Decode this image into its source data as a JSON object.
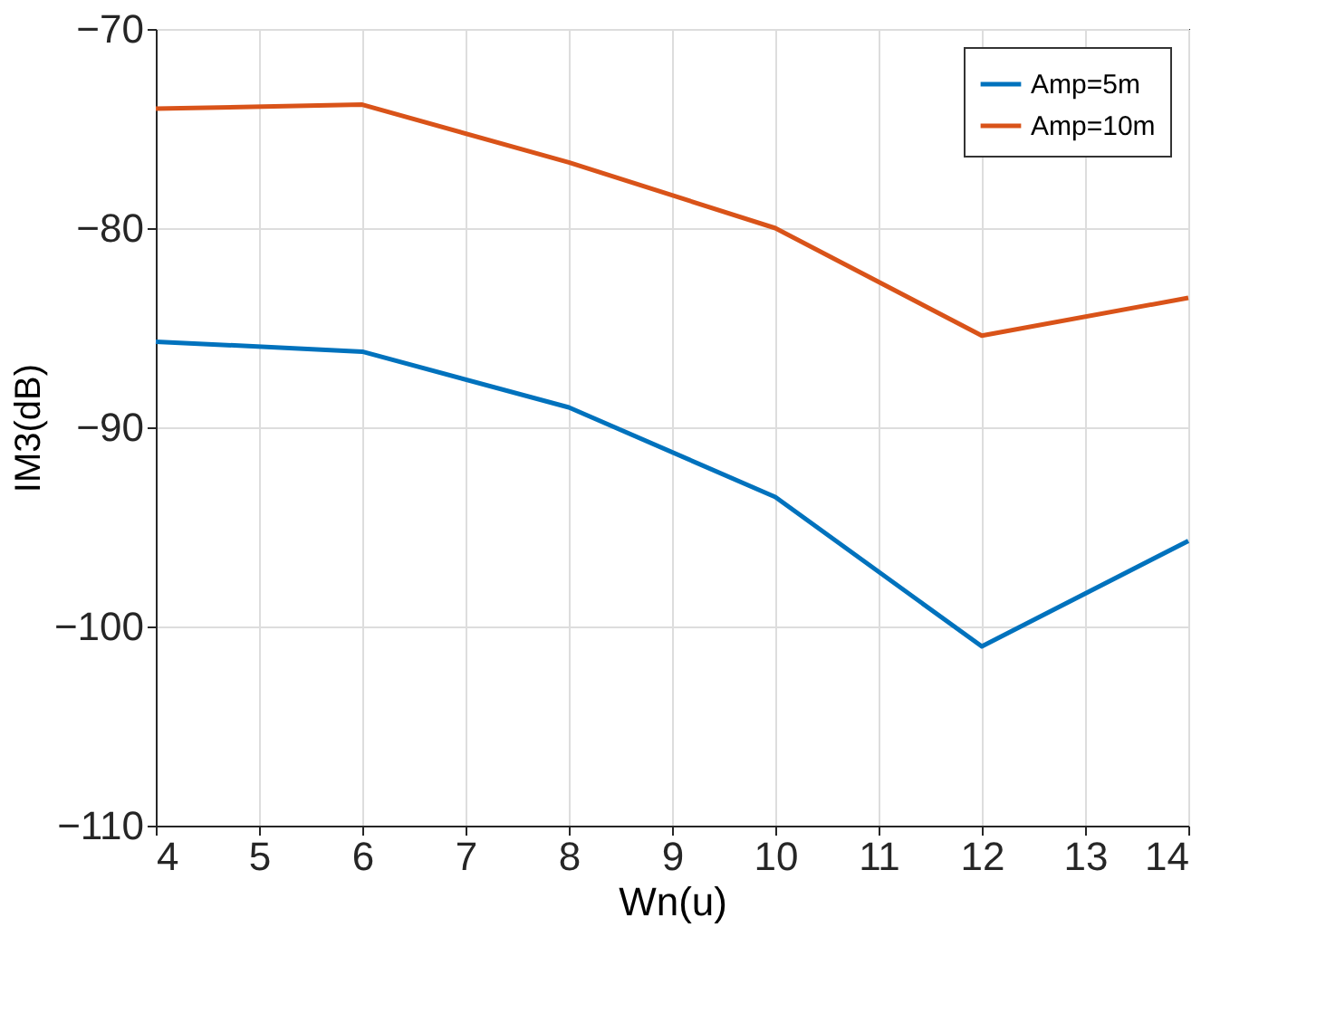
{
  "chart_data": {
    "type": "line",
    "xlabel": "Wn(u)",
    "ylabel": "IM3(dB)",
    "x": [
      4,
      6,
      8,
      10,
      12,
      14
    ],
    "series": [
      {
        "name": "Amp=5m",
        "color": "#0072bd",
        "values": [
          -85.7,
          -86.2,
          -89.0,
          -93.5,
          -101.0,
          -95.7
        ]
      },
      {
        "name": "Amp=10m",
        "color": "#d95319",
        "values": [
          -74.0,
          -73.8,
          -76.7,
          -80.0,
          -85.4,
          -83.5
        ]
      }
    ],
    "xlim": [
      4,
      14
    ],
    "xticks": [
      4,
      5,
      6,
      7,
      8,
      9,
      10,
      11,
      12,
      13,
      14
    ],
    "ylim": [
      -110,
      -70
    ],
    "yticks": [
      -110,
      -100,
      -90,
      -80,
      -70
    ],
    "grid": true,
    "legend": "top right",
    "marker": "none",
    "line_style": "solid"
  }
}
